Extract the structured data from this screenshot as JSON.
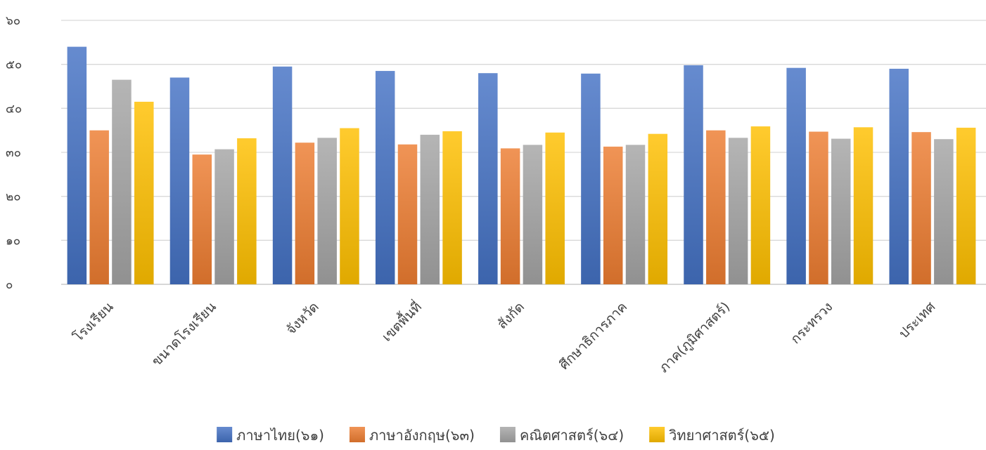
{
  "chart_data": {
    "type": "bar",
    "title": "",
    "xlabel": "",
    "ylabel": "",
    "ylim": [
      0,
      60
    ],
    "yticks": [
      0,
      10,
      20,
      30,
      40,
      50,
      60
    ],
    "ytick_labels": [
      "๐",
      "๑๐",
      "๒๐",
      "๓๐",
      "๔๐",
      "๕๐",
      "๖๐"
    ],
    "grid": true,
    "legend_position": "bottom",
    "categories": [
      "โรงเรียน",
      "ขนาดโรงเรียน",
      "จังหวัด",
      "เขตพื้นที่",
      "สังกัด",
      "ศึกษาธิการภาค",
      "ภาค(ภูมิศาสตร์)",
      "กระทรวง",
      "ประเทศ"
    ],
    "series": [
      {
        "name": "ภาษาไทย(๖๑)",
        "color": "#4472C4",
        "values": [
          54.0,
          47.0,
          49.5,
          48.5,
          48.0,
          47.9,
          49.8,
          49.2,
          49.0
        ]
      },
      {
        "name": "ภาษาอังกฤษ(๖๓)",
        "color": "#ED7D31",
        "values": [
          35.0,
          29.5,
          32.2,
          31.8,
          30.9,
          31.3,
          35.0,
          34.7,
          34.6
        ]
      },
      {
        "name": "คณิตศาสตร์(๖๔)",
        "color": "#A5A5A5",
        "values": [
          46.5,
          30.7,
          33.3,
          34.0,
          31.7,
          31.7,
          33.3,
          33.1,
          33.0
        ]
      },
      {
        "name": "วิทยาศาสตร์(๖๕)",
        "color": "#FFC000",
        "values": [
          41.5,
          33.2,
          35.5,
          34.8,
          34.5,
          34.2,
          35.9,
          35.7,
          35.6
        ]
      }
    ]
  }
}
